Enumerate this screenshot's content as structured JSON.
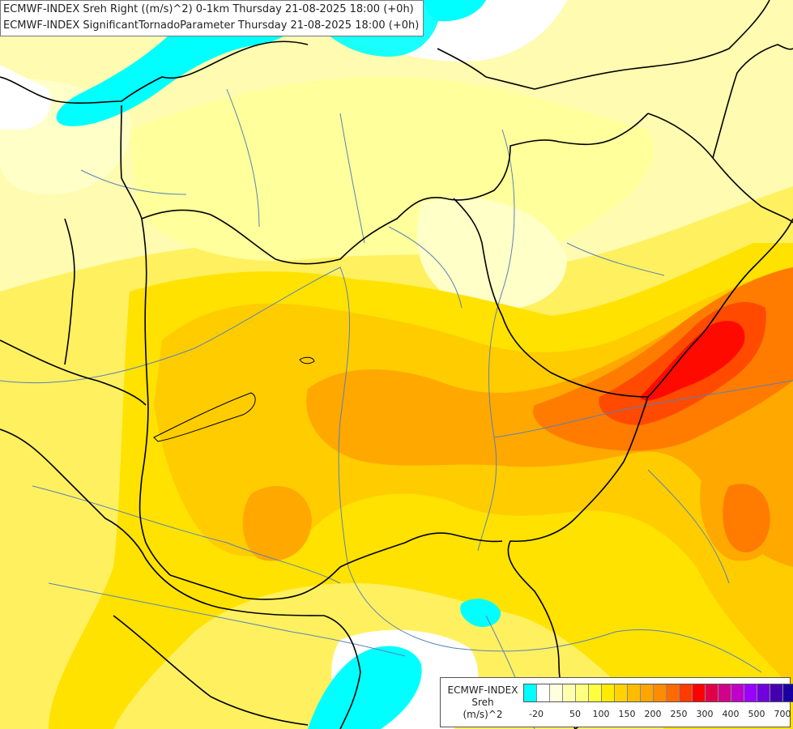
{
  "titles": {
    "line1": "ECMWF-INDEX Sreh Right ((m/s)^2) 0-1km Thursday 21-08-2025 18:00 (+0h)",
    "line2": "ECMWF-INDEX SignificantTornadoParameter Thursday 21-08-2025 18:00 (+0h)"
  },
  "legend": {
    "title_line1": "ECMWF-INDEX",
    "title_line2": "Sreh",
    "title_line3": "(m/s)^2",
    "colors": [
      "#00ffff",
      "#ffffff",
      "#ffffe0",
      "#ffffb0",
      "#ffff80",
      "#ffff40",
      "#ffea00",
      "#ffd200",
      "#ffbb00",
      "#ffa500",
      "#ff8c00",
      "#ff6a00",
      "#ff3c00",
      "#ff0000",
      "#e0004a",
      "#d00088",
      "#c000c8",
      "#9a00ff",
      "#7000dc",
      "#4400b0",
      "#1800a0"
    ],
    "tick_labels": [
      "-20",
      "50",
      "100",
      "150",
      "200",
      "250",
      "300",
      "400",
      "500",
      "700"
    ]
  },
  "field_colors": {
    "white": "#ffffff",
    "cyan": "#00ffff",
    "pale": "#ffffc8",
    "light": "#ffff9c",
    "yellow": "#fff060",
    "gold": "#ffe200",
    "amber": "#ffcc00",
    "orange": "#ffa800",
    "dark_orange": "#ff7c00",
    "red_orange": "#ff4a00",
    "red": "#ff0a00"
  },
  "line_colors": {
    "borders": "#000000",
    "rivers": "#5a82b4"
  }
}
